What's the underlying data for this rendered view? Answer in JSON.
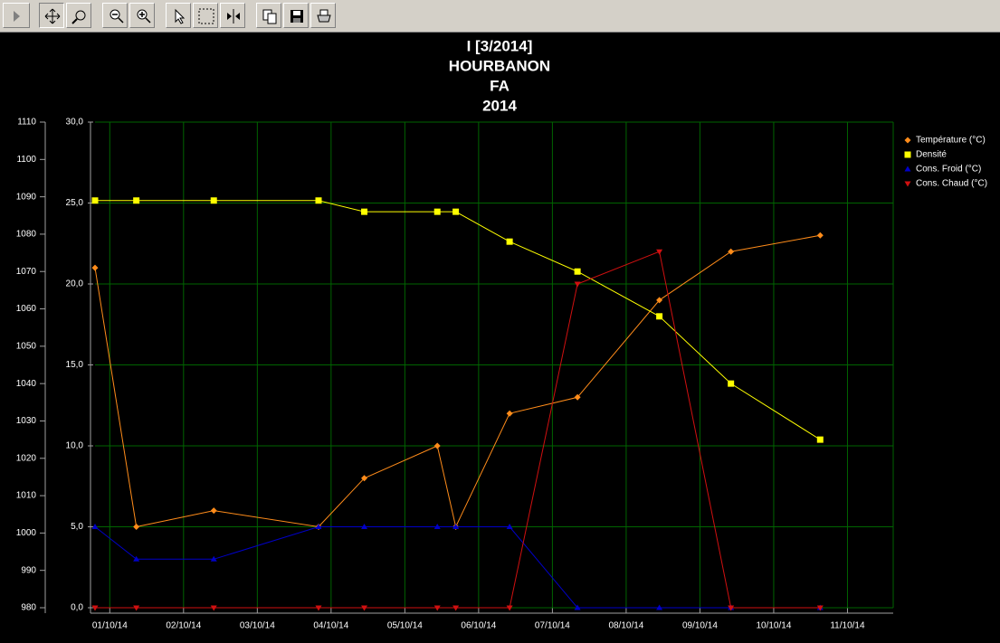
{
  "chart_data": {
    "type": "line",
    "title": [
      "I [3/2014]",
      "HOURBANON",
      "FA",
      "2014"
    ],
    "x": [
      0.8,
      1.36,
      2.41,
      3.83,
      4.45,
      5.44,
      5.69,
      6.42,
      7.34,
      8.45,
      9.42,
      10.63
    ],
    "xlim": [
      0.8,
      11.62
    ],
    "xticks": [
      {
        "value": 1,
        "label": "01/10/14"
      },
      {
        "value": 2,
        "label": "02/10/14"
      },
      {
        "value": 3,
        "label": "03/10/14"
      },
      {
        "value": 4,
        "label": "04/10/14"
      },
      {
        "value": 5,
        "label": "05/10/14"
      },
      {
        "value": 6,
        "label": "06/10/14"
      },
      {
        "value": 7,
        "label": "07/10/14"
      },
      {
        "value": 8,
        "label": "08/10/14"
      },
      {
        "value": 9,
        "label": "09/10/14"
      },
      {
        "value": 10,
        "label": "10/10/14"
      },
      {
        "value": 11,
        "label": "11/10/14"
      }
    ],
    "ylim": [
      0,
      30
    ],
    "yticks": [
      {
        "value": 0,
        "label": "0,0"
      },
      {
        "value": 5,
        "label": "5,0"
      },
      {
        "value": 10,
        "label": "10,0"
      },
      {
        "value": 15,
        "label": "15,0"
      },
      {
        "value": 20,
        "label": "20,0"
      },
      {
        "value": 25,
        "label": "25,0"
      },
      {
        "value": 30,
        "label": "30,0"
      }
    ],
    "y2lim": [
      980,
      1110
    ],
    "y2ticks": [
      980,
      990,
      1000,
      1010,
      1020,
      1030,
      1040,
      1050,
      1060,
      1070,
      1080,
      1090,
      1100,
      1110
    ],
    "grid": true,
    "legend": "top-right",
    "series": [
      {
        "name": "Température (°C)",
        "color": "#ff8c1a",
        "marker": "diamond",
        "values": [
          21.0,
          5.0,
          6.0,
          5.0,
          8.0,
          10.0,
          5.0,
          12.0,
          13.0,
          19.0,
          22.0,
          23.0
        ]
      },
      {
        "name": "Densité",
        "color": "#ffff00",
        "marker": "square",
        "axis": "y2",
        "values": [
          1089,
          1089,
          1089,
          1089,
          1086,
          1086,
          1086,
          1078,
          1070,
          1058,
          1040,
          1025
        ]
      },
      {
        "name": "Cons. Froid (°C)",
        "color": "#0000c8",
        "marker": "triangle-up",
        "values": [
          5.0,
          3.0,
          3.0,
          5.0,
          5.0,
          5.0,
          5.0,
          5.0,
          0.0,
          0.0,
          0.0,
          0.0
        ]
      },
      {
        "name": "Cons. Chaud (°C)",
        "color": "#d01010",
        "marker": "triangle-down",
        "values": [
          0.0,
          0.0,
          0.0,
          0.0,
          0.0,
          0.0,
          0.0,
          0.0,
          20.0,
          22.0,
          0.0,
          0.0
        ]
      }
    ]
  }
}
